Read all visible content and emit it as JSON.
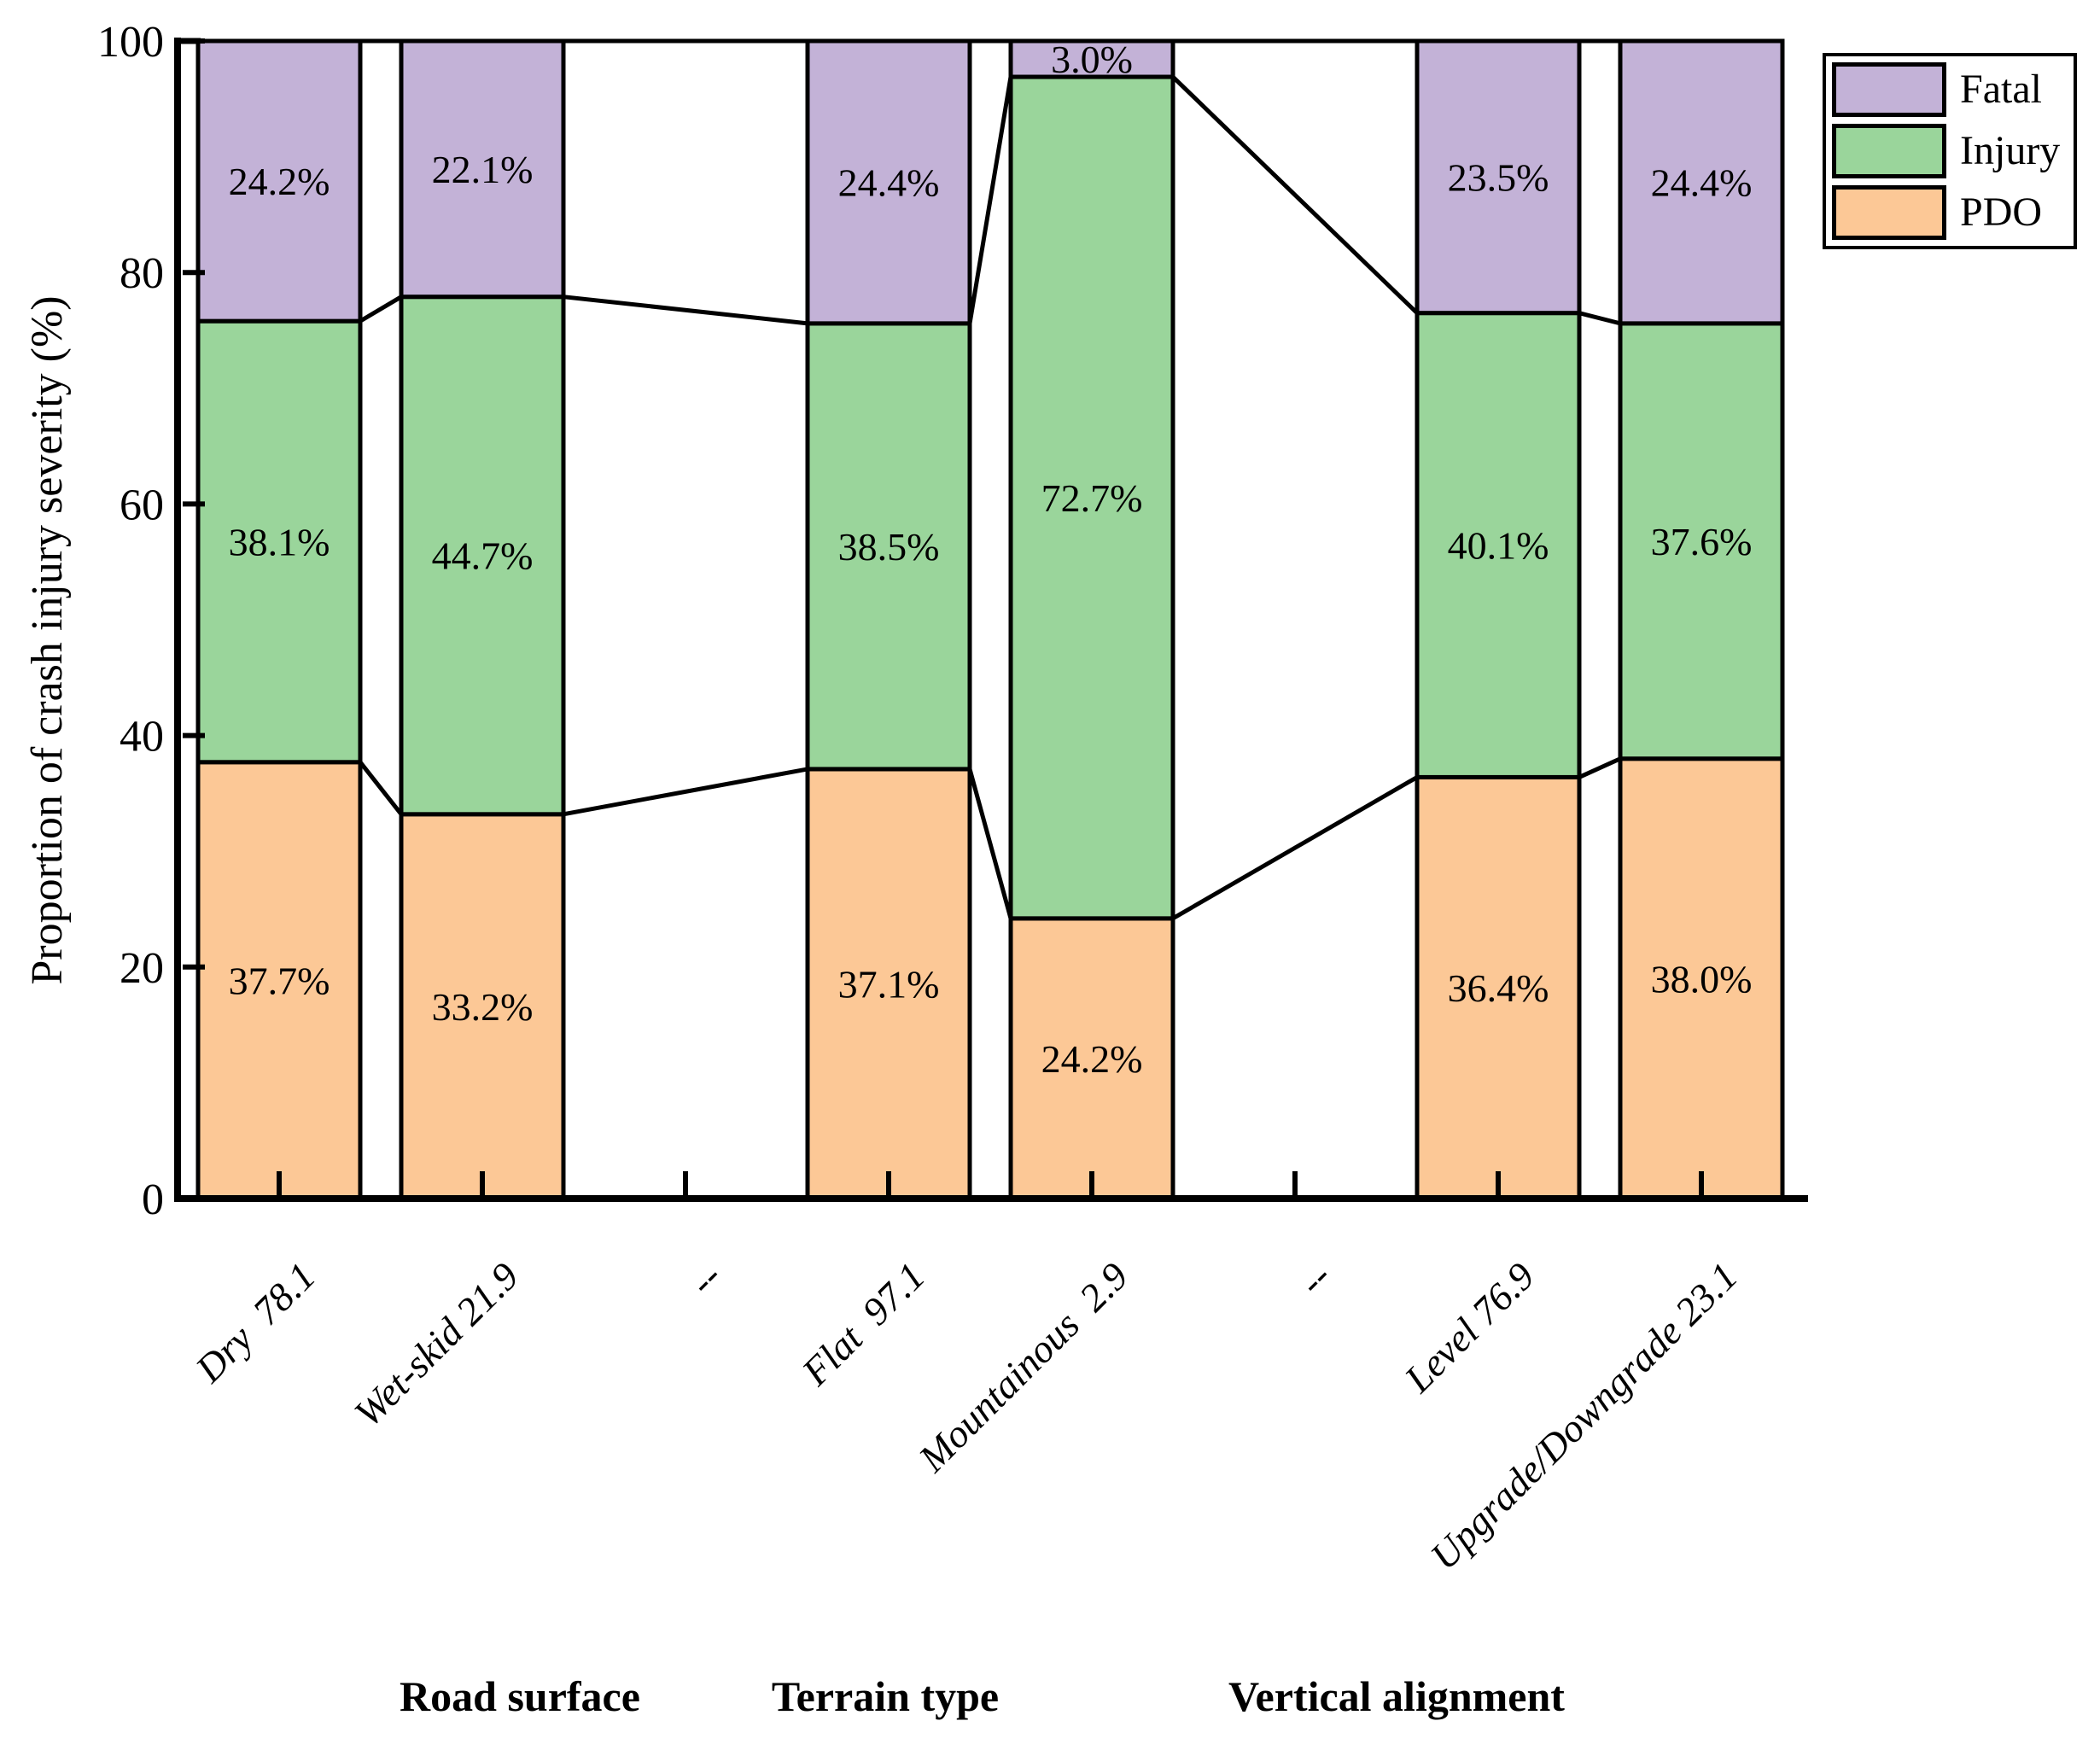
{
  "legend": {
    "entries": [
      {
        "label": "Fatal",
        "color": "#c3b2d7"
      },
      {
        "label": "Injury",
        "color": "#9ad59b"
      },
      {
        "label": "PDO",
        "color": "#fcc896"
      }
    ]
  },
  "chart_data": {
    "type": "bar",
    "stacked": true,
    "orientation": "vertical",
    "title": "",
    "xlabel": "",
    "ylabel": "Proportion of crash injury severity (%)",
    "ylim": [
      0,
      100
    ],
    "yticks": [
      0,
      20,
      40,
      60,
      80,
      100
    ],
    "grid": false,
    "legend_position": "upper-right-outside",
    "categories": [
      "Dry  78.1",
      "Wet-skid 21.9",
      "--",
      "Flat  97.1",
      "Mountainous  2.9",
      "--",
      "Level 76.9",
      "Upgrade/Downgrade 23.1"
    ],
    "group_labels": [
      "Road surface",
      "Terrain type",
      "Vertical alignment"
    ],
    "empty_category_label": "--",
    "series": [
      {
        "name": "PDO",
        "color": "#fcc896",
        "values": [
          37.7,
          33.2,
          null,
          37.1,
          24.2,
          null,
          36.4,
          38.0
        ],
        "labels": [
          "37.7%",
          "33.2%",
          null,
          "37.1%",
          "24.2%",
          null,
          "36.4%",
          "38.0%"
        ]
      },
      {
        "name": "Injury",
        "color": "#9ad59b",
        "values": [
          38.1,
          44.7,
          null,
          38.5,
          72.7,
          null,
          40.1,
          37.6
        ],
        "labels": [
          "38.1%",
          "44.7%",
          null,
          "38.5%",
          "72.7%",
          null,
          "40.1%",
          "37.6%"
        ]
      },
      {
        "name": "Fatal",
        "color": "#c3b2d7",
        "values": [
          24.2,
          22.1,
          null,
          24.4,
          3.0,
          null,
          23.5,
          24.4
        ],
        "labels": [
          "24.2%",
          "22.1%",
          null,
          "24.4%",
          "3.0%",
          null,
          "23.5%",
          "24.4%"
        ]
      }
    ]
  }
}
